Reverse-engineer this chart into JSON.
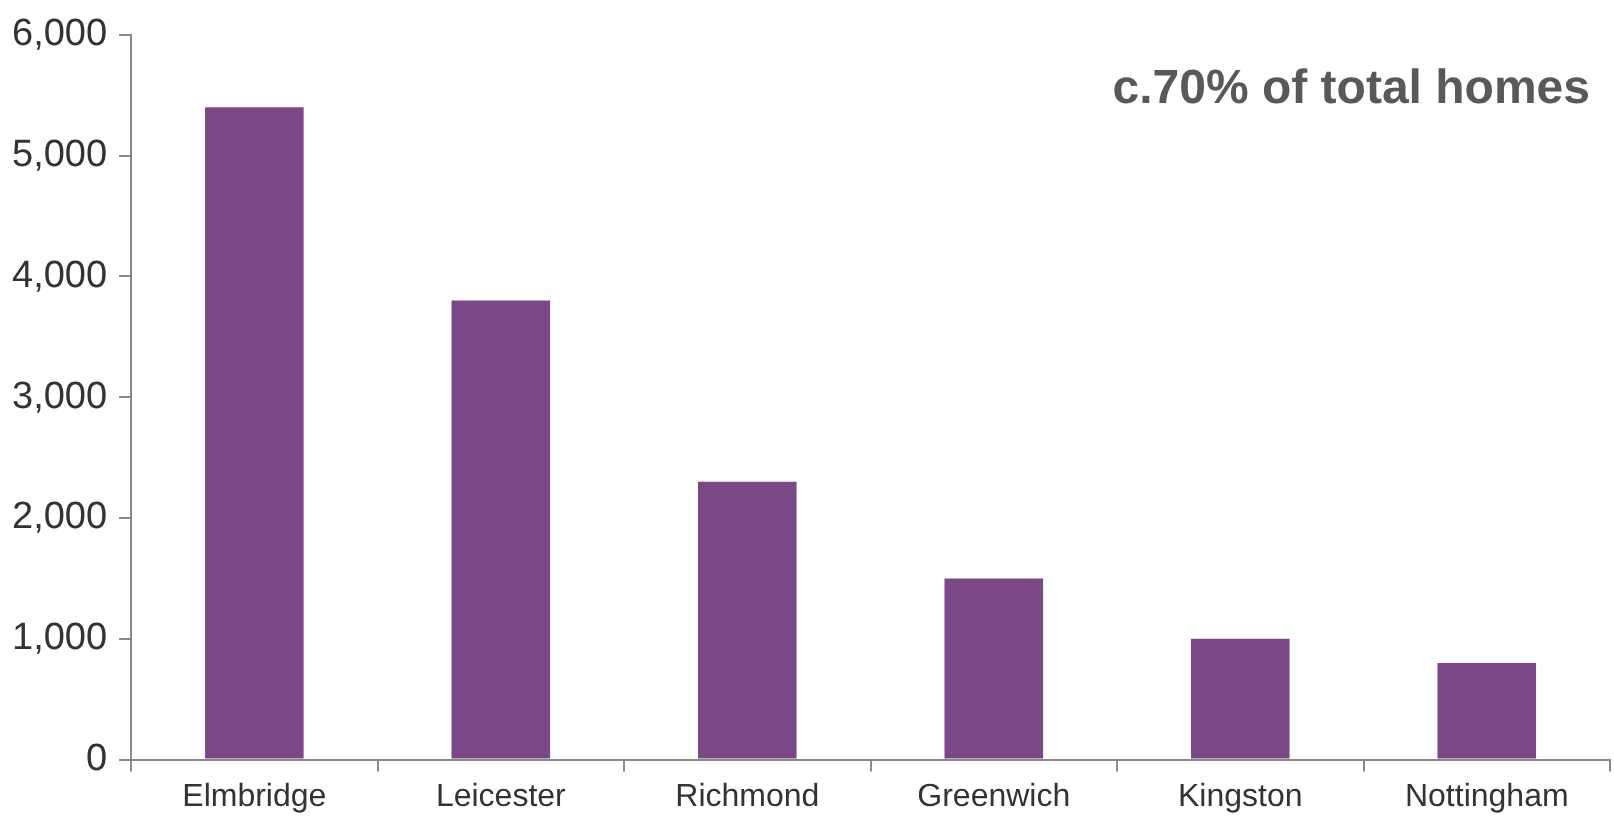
{
  "chart_data": {
    "type": "bar",
    "categories": [
      "Elmbridge",
      "Leicester",
      "Richmond",
      "Greenwich",
      "Kingston",
      "Nottingham"
    ],
    "values": [
      5400,
      3800,
      2300,
      1500,
      1000,
      800
    ],
    "color": "#7b4886",
    "ylim": [
      0,
      6000
    ],
    "yticks": [
      {
        "value": 0,
        "label": "0"
      },
      {
        "value": 1000,
        "label": "1,000"
      },
      {
        "value": 2000,
        "label": "2,000"
      },
      {
        "value": 3000,
        "label": "3,000"
      },
      {
        "value": 4000,
        "label": "4,000"
      },
      {
        "value": 5000,
        "label": "5,000"
      },
      {
        "value": 6000,
        "label": "6,000"
      }
    ],
    "grid": false,
    "legend": false,
    "annotations": [
      "c.70% of total homes"
    ]
  }
}
